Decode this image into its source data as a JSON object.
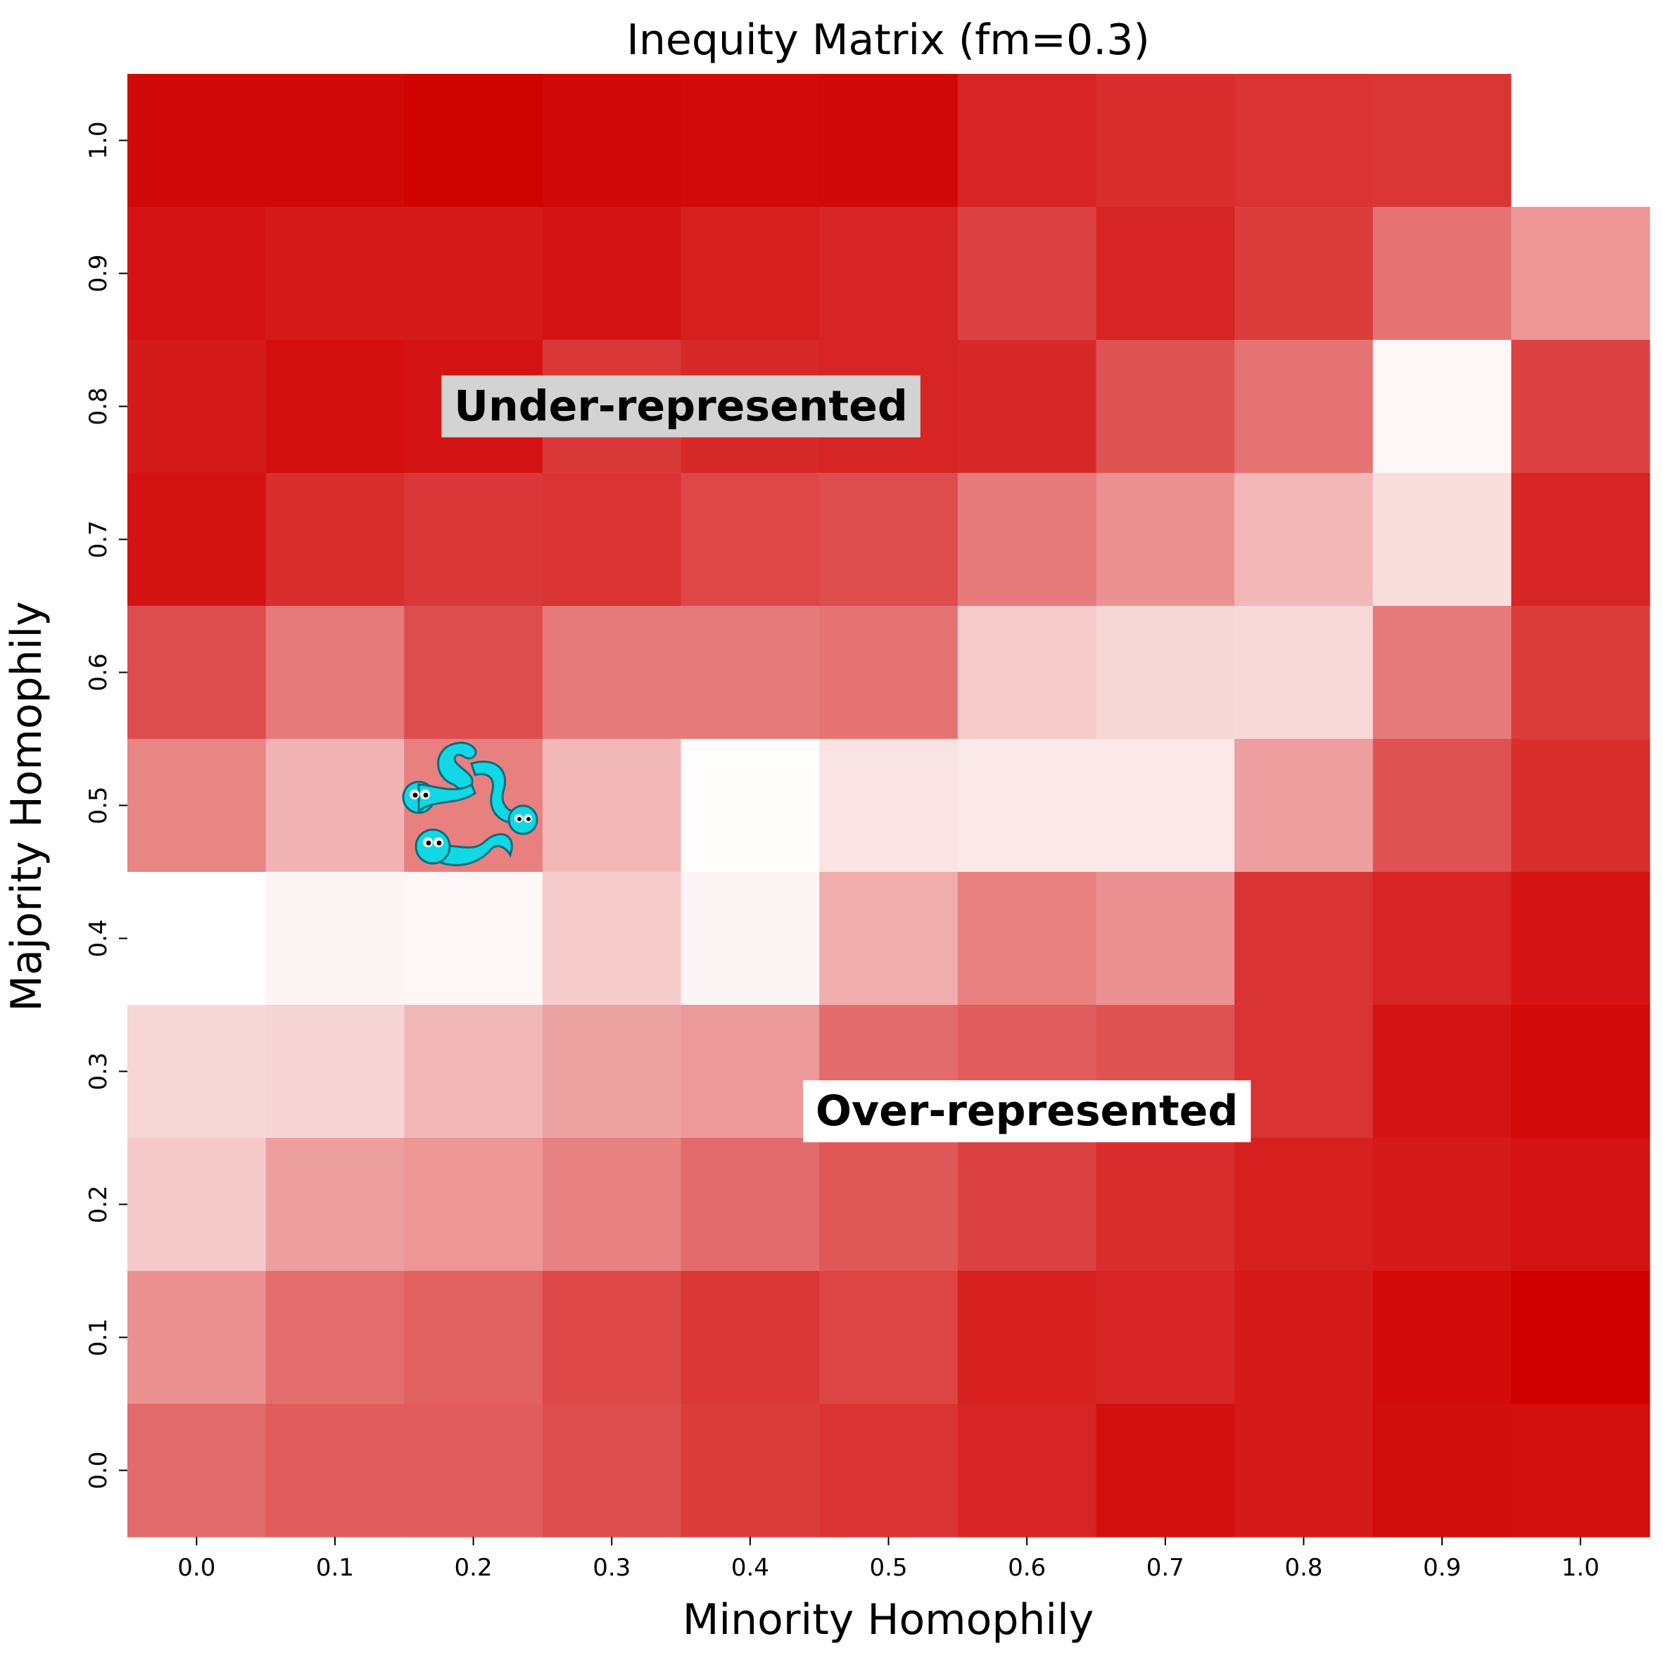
{
  "chart_data": {
    "type": "heatmap",
    "title": "Inequity Matrix (fm=0.3)",
    "xlabel": "Minority Homophily",
    "ylabel": "Majority Homophily",
    "x": [
      "0.0",
      "0.1",
      "0.2",
      "0.3",
      "0.4",
      "0.5",
      "0.6",
      "0.7",
      "0.8",
      "0.9",
      "1.0"
    ],
    "y": [
      "1.0",
      "0.9",
      "0.8",
      "0.7",
      "0.6",
      "0.5",
      "0.4",
      "0.3",
      "0.2",
      "0.1",
      "0.0"
    ],
    "colormap": {
      "low": "#ffffff",
      "high": "#d00000"
    },
    "value_range": [
      0,
      1
    ],
    "values": [
      [
        0.97,
        0.97,
        0.99,
        0.97,
        0.96,
        0.97,
        0.86,
        0.82,
        0.8,
        0.79,
        0.0
      ],
      [
        0.92,
        0.9,
        0.9,
        0.92,
        0.88,
        0.86,
        0.74,
        0.86,
        0.76,
        0.55,
        0.41
      ],
      [
        0.9,
        0.94,
        0.92,
        0.78,
        0.84,
        0.86,
        0.84,
        0.68,
        0.55,
        0.03,
        0.74
      ],
      [
        0.93,
        0.82,
        0.78,
        0.8,
        0.72,
        0.7,
        0.52,
        0.43,
        0.28,
        0.13,
        0.86
      ],
      [
        0.7,
        0.52,
        0.7,
        0.52,
        0.52,
        0.55,
        0.2,
        0.16,
        0.15,
        0.52,
        0.76
      ],
      [
        0.48,
        0.3,
        0.5,
        0.28,
        0.01,
        0.11,
        0.09,
        0.09,
        0.38,
        0.68,
        0.82
      ],
      [
        0.0,
        0.04,
        0.03,
        0.2,
        0.04,
        0.32,
        0.5,
        0.43,
        0.8,
        0.86,
        0.92
      ],
      [
        0.16,
        0.17,
        0.28,
        0.36,
        0.4,
        0.58,
        0.64,
        0.68,
        0.8,
        0.92,
        0.96
      ],
      [
        0.21,
        0.38,
        0.41,
        0.49,
        0.58,
        0.66,
        0.74,
        0.82,
        0.88,
        0.9,
        0.92
      ],
      [
        0.43,
        0.57,
        0.62,
        0.72,
        0.78,
        0.73,
        0.88,
        0.86,
        0.9,
        0.96,
        1.0
      ],
      [
        0.58,
        0.64,
        0.64,
        0.7,
        0.76,
        0.8,
        0.86,
        0.94,
        0.9,
        0.95,
        0.94
      ]
    ],
    "annotations": [
      {
        "text": "Under-represented",
        "x": 0.35,
        "y": 0.8,
        "box_color": "#d3d3d3"
      },
      {
        "text": "Over-represented",
        "x": 0.6,
        "y": 0.27,
        "box_color": "#ffffff"
      }
    ],
    "grid": false,
    "colorbar": false
  },
  "decorations": {
    "sticker": "worms-emoji-icon"
  }
}
